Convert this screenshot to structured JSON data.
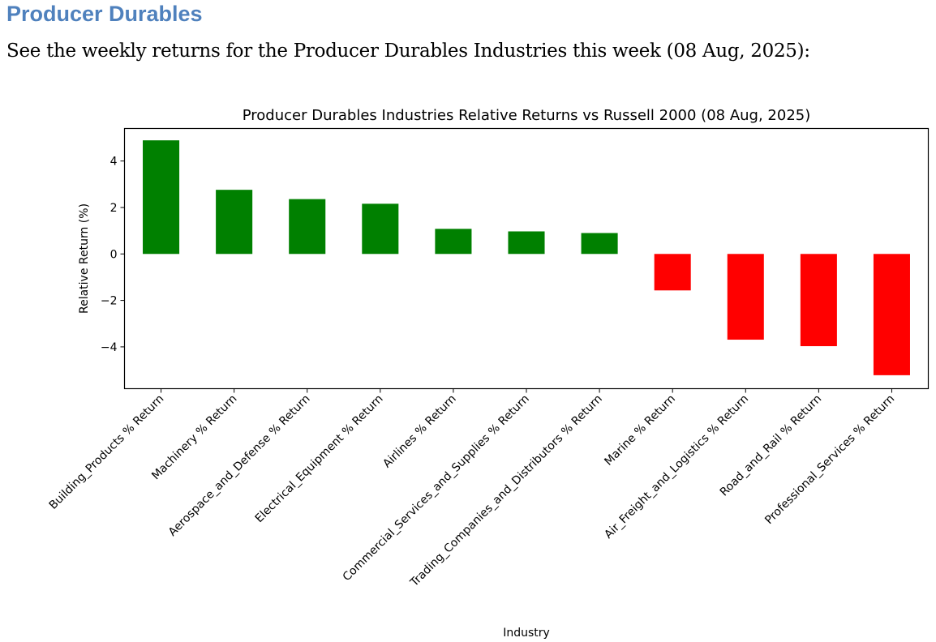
{
  "page": {
    "heading": "Producer Durables",
    "subtitle": "See the weekly returns for the Producer Durables Industries this week (08 Aug, 2025):"
  },
  "colors": {
    "positive": "#008000",
    "negative": "#ff0000"
  },
  "chart_data": {
    "type": "bar",
    "title": "Producer Durables Industries Relative Returns vs Russell 2000 (08 Aug, 2025)",
    "xlabel": "Industry",
    "ylabel": "Relative Return (%)",
    "ylim": [
      -5.8,
      5.4
    ],
    "yticks": [
      4,
      2,
      0,
      -2,
      -4
    ],
    "ytick_labels": [
      "4",
      "2",
      "0",
      "−2",
      "−4"
    ],
    "grid": false,
    "categories": [
      "Building_Products % Return",
      "Machinery % Return",
      "Aerospace_and_Defense % Return",
      "Electrical_Equipment % Return",
      "Airlines % Return",
      "Commercial_Services_and_Supplies % Return",
      "Trading_Companies_and_Distributors % Return",
      "Marine % Return",
      "Air_Freight_and_Logistics % Return",
      "Road_and_Rail % Return",
      "Professional_Services % Return"
    ],
    "values": [
      4.89,
      2.76,
      2.36,
      2.16,
      1.08,
      0.97,
      0.9,
      -1.57,
      -3.69,
      -3.97,
      -5.22
    ]
  }
}
